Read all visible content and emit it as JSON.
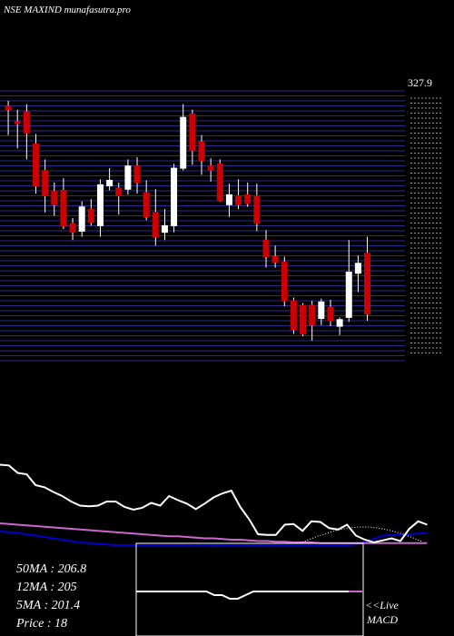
{
  "header": {
    "title": "NSE MAXIND munafasutra.pro"
  },
  "price_marker": "327.9",
  "stats": [
    {
      "label": "50MA",
      "value": "206.8"
    },
    {
      "label": "12MA",
      "value": "205"
    },
    {
      "label": "5MA",
      "value": "201.4"
    },
    {
      "label": "Price",
      "value": "18"
    }
  ],
  "macd": {
    "live_label": "<<Live",
    "name": "MACD"
  },
  "colors": {
    "up": "#ffffff",
    "down": "#cc0000",
    "grid": "#2b2b8c",
    "ma_white": "#ffffff",
    "ma_pink": "#cc66cc",
    "ma_blue": "#0000cc"
  },
  "chart_data": {
    "type": "candlestick",
    "x": [
      1,
      2,
      3,
      4,
      5,
      6,
      7,
      8,
      9,
      10,
      11,
      12,
      13,
      14,
      15,
      16,
      17,
      18,
      19,
      20,
      21,
      22,
      23,
      24,
      25,
      26,
      27,
      28,
      29,
      30,
      31,
      32,
      33,
      34,
      35,
      36,
      37,
      38,
      39,
      40,
      41,
      42,
      43,
      44,
      45,
      46,
      47,
      48,
      49
    ],
    "candles": [
      {
        "o": 316,
        "h": 321,
        "l": 290,
        "c": 313
      },
      {
        "o": 302,
        "h": 313,
        "l": 278,
        "c": 301
      },
      {
        "o": 311,
        "h": 318,
        "l": 268,
        "c": 292
      },
      {
        "o": 282,
        "h": 291,
        "l": 237,
        "c": 244
      },
      {
        "o": 258,
        "h": 268,
        "l": 220,
        "c": 235
      },
      {
        "o": 239,
        "h": 247,
        "l": 217,
        "c": 227
      },
      {
        "o": 240,
        "h": 251,
        "l": 205,
        "c": 208
      },
      {
        "o": 210,
        "h": 215,
        "l": 195,
        "c": 202
      },
      {
        "o": 203,
        "h": 230,
        "l": 198,
        "c": 225
      },
      {
        "o": 223,
        "h": 232,
        "l": 208,
        "c": 211
      },
      {
        "o": 208,
        "h": 250,
        "l": 198,
        "c": 245
      },
      {
        "o": 244,
        "h": 260,
        "l": 240,
        "c": 249
      },
      {
        "o": 242,
        "h": 247,
        "l": 218,
        "c": 235
      },
      {
        "o": 241,
        "h": 268,
        "l": 236,
        "c": 262
      },
      {
        "o": 262,
        "h": 270,
        "l": 237,
        "c": 247
      },
      {
        "o": 238,
        "h": 249,
        "l": 213,
        "c": 216
      },
      {
        "o": 220,
        "h": 241,
        "l": 190,
        "c": 198
      },
      {
        "o": 202,
        "h": 223,
        "l": 195,
        "c": 208
      },
      {
        "o": 208,
        "h": 264,
        "l": 202,
        "c": 260
      },
      {
        "o": 260,
        "h": 318,
        "l": 258,
        "c": 306
      },
      {
        "o": 309,
        "h": 313,
        "l": 263,
        "c": 276
      },
      {
        "o": 284,
        "h": 290,
        "l": 254,
        "c": 267
      },
      {
        "o": 262,
        "h": 269,
        "l": 248,
        "c": 258
      },
      {
        "o": 264,
        "h": 268,
        "l": 230,
        "c": 231
      },
      {
        "o": 227,
        "h": 246,
        "l": 216,
        "c": 236
      },
      {
        "o": 235,
        "h": 250,
        "l": 223,
        "c": 227
      },
      {
        "o": 236,
        "h": 247,
        "l": 225,
        "c": 228
      },
      {
        "o": 235,
        "h": 246,
        "l": 203,
        "c": 210
      },
      {
        "o": 195,
        "h": 204,
        "l": 170,
        "c": 180
      },
      {
        "o": 180,
        "h": 190,
        "l": 170,
        "c": 175
      },
      {
        "o": 175,
        "h": 180,
        "l": 135,
        "c": 140
      },
      {
        "o": 140,
        "h": 143,
        "l": 110,
        "c": 114
      },
      {
        "o": 136,
        "h": 138,
        "l": 108,
        "c": 110
      },
      {
        "o": 136,
        "h": 140,
        "l": 104,
        "c": 118
      },
      {
        "o": 124,
        "h": 142,
        "l": 118,
        "c": 139
      },
      {
        "o": 134,
        "h": 141,
        "l": 117,
        "c": 122
      },
      {
        "o": 117,
        "h": 125,
        "l": 109,
        "c": 123
      },
      {
        "o": 125,
        "h": 195,
        "l": 121,
        "c": 166
      },
      {
        "o": 165,
        "h": 181,
        "l": 148,
        "c": 174
      },
      {
        "o": 183,
        "h": 198,
        "l": 122,
        "c": 128
      }
    ],
    "candle_x": [
      1,
      3,
      5,
      7,
      9,
      11,
      13,
      15,
      17,
      19,
      21,
      23,
      25,
      27,
      29,
      31,
      33,
      35,
      37,
      39,
      41,
      43,
      45,
      47,
      49,
      51,
      53,
      55,
      57,
      59,
      61,
      63,
      65,
      67,
      69,
      71,
      73,
      75,
      77,
      79
    ],
    "ylim": [
      85,
      330
    ],
    "moving_averages": {
      "white": [
        118,
        117,
        106,
        104,
        88,
        85,
        78,
        72,
        64,
        58,
        57,
        58,
        64,
        64,
        56,
        52,
        55,
        62,
        58,
        72,
        66,
        61,
        53,
        61,
        70,
        76,
        80,
        56,
        38,
        16,
        15,
        15,
        30,
        31,
        21,
        35,
        34,
        25,
        23,
        30,
        14,
        8,
        4,
        7,
        10,
        6,
        24,
        35,
        30
      ],
      "pink": [
        32,
        31,
        30,
        29,
        28,
        27,
        26,
        25,
        24,
        23,
        22,
        21,
        20,
        19,
        18,
        17,
        16,
        15,
        14,
        13,
        13,
        12,
        11,
        10,
        10,
        9,
        8,
        8,
        7,
        6,
        6,
        5,
        5,
        4,
        4,
        4,
        3,
        3,
        3,
        3,
        3,
        3,
        3,
        3,
        3,
        3,
        3,
        3,
        3
      ],
      "blue": [
        20,
        19,
        18,
        16,
        14,
        12,
        10,
        8,
        6,
        4,
        3,
        2,
        1,
        0,
        0,
        0,
        0,
        0,
        0,
        0,
        0,
        0,
        0,
        0,
        0,
        0,
        0,
        0,
        0,
        0,
        0,
        0,
        0,
        0,
        0,
        0,
        0,
        0,
        0,
        0,
        1,
        5,
        9,
        14,
        15,
        15,
        16,
        17,
        18
      ]
    },
    "macd_line": [
      0,
      0,
      0,
      0,
      0,
      0,
      0,
      0,
      0,
      0,
      -1,
      -1,
      -2,
      -2,
      -1,
      0,
      0,
      0,
      0,
      0,
      0,
      0,
      0,
      0,
      0,
      0,
      0,
      0,
      0
    ]
  }
}
